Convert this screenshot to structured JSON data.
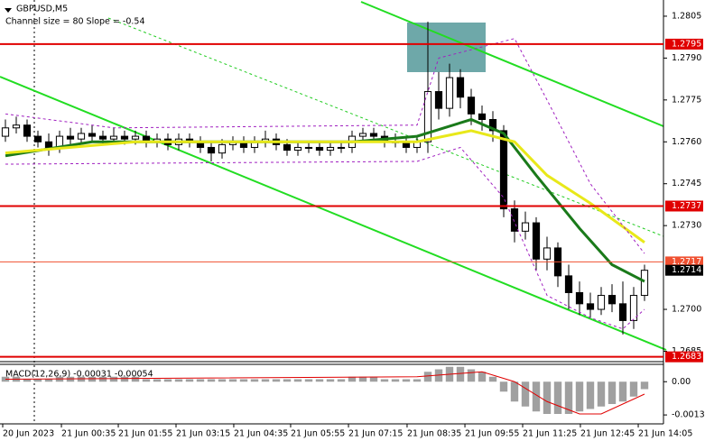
{
  "chart_data": {
    "type": "candlestick",
    "title": "GBPUSD,M5",
    "subtitle": "Channel size = 80 Slope = -0.54",
    "open": [
      1.2762,
      1.2765,
      1.2766,
      1.2762,
      1.276,
      1.2758,
      1.2762,
      1.2761,
      1.2763,
      1.2762,
      1.2761,
      1.2762,
      1.2761,
      1.2762,
      1.276,
      1.2761,
      1.2759,
      1.2761,
      1.276,
      1.2758,
      1.2756,
      1.2759,
      1.276,
      1.2758,
      1.276,
      1.2761,
      1.2759,
      1.2757,
      1.2758,
      1.2758,
      1.2757,
      1.2758,
      1.2758,
      1.2762,
      1.2763,
      1.2762,
      1.276,
      1.276,
      1.2758,
      1.276,
      1.2778,
      1.2772,
      1.2783,
      1.2776,
      1.277,
      1.2768,
      1.2764,
      1.2736,
      1.2728,
      1.2731,
      1.2718,
      1.2722,
      1.2712,
      1.2706,
      1.2702,
      1.27,
      1.2705,
      1.2702,
      1.2696,
      1.2705
    ],
    "high": [
      1.2768,
      1.2769,
      1.2768,
      1.2764,
      1.2763,
      1.2764,
      1.2765,
      1.2765,
      1.2766,
      1.2764,
      1.2765,
      1.2764,
      1.2764,
      1.2764,
      1.2763,
      1.2763,
      1.2763,
      1.2763,
      1.2762,
      1.276,
      1.2761,
      1.2762,
      1.2762,
      1.2762,
      1.2764,
      1.2763,
      1.2761,
      1.276,
      1.276,
      1.276,
      1.276,
      1.276,
      1.2764,
      1.2765,
      1.2765,
      1.2764,
      1.2763,
      1.2762,
      1.2762,
      1.2803,
      1.2785,
      1.2788,
      1.2786,
      1.2779,
      1.2773,
      1.2771,
      1.2766,
      1.2739,
      1.2735,
      1.2733,
      1.2726,
      1.2724,
      1.2716,
      1.271,
      1.2706,
      1.2708,
      1.2709,
      1.271,
      1.2708,
      1.2716
    ],
    "low": [
      1.276,
      1.2763,
      1.276,
      1.2758,
      1.2755,
      1.2756,
      1.2759,
      1.2759,
      1.276,
      1.2759,
      1.2759,
      1.2759,
      1.2759,
      1.2758,
      1.2758,
      1.2757,
      1.2757,
      1.2758,
      1.2756,
      1.2753,
      1.2754,
      1.2757,
      1.2756,
      1.2756,
      1.2758,
      1.2757,
      1.2755,
      1.2755,
      1.2756,
      1.2755,
      1.2755,
      1.2756,
      1.2756,
      1.276,
      1.276,
      1.2758,
      1.2758,
      1.2756,
      1.2756,
      1.2756,
      1.2768,
      1.2769,
      1.2772,
      1.2766,
      1.2764,
      1.276,
      1.2733,
      1.2724,
      1.2725,
      1.2714,
      1.2714,
      1.2708,
      1.27,
      1.2698,
      1.2697,
      1.2698,
      1.2699,
      1.2691,
      1.2693,
      1.2703
    ],
    "close": [
      1.2765,
      1.2766,
      1.2762,
      1.276,
      1.2758,
      1.2762,
      1.2761,
      1.2763,
      1.2762,
      1.2761,
      1.2762,
      1.2761,
      1.2762,
      1.276,
      1.2761,
      1.2759,
      1.2761,
      1.276,
      1.2758,
      1.2756,
      1.2759,
      1.276,
      1.2758,
      1.276,
      1.2761,
      1.2759,
      1.2757,
      1.2758,
      1.2758,
      1.2757,
      1.2758,
      1.2758,
      1.2762,
      1.2763,
      1.2762,
      1.276,
      1.276,
      1.2758,
      1.276,
      1.2778,
      1.2772,
      1.2783,
      1.2776,
      1.277,
      1.2768,
      1.2764,
      1.2736,
      1.2728,
      1.2731,
      1.2718,
      1.2722,
      1.2712,
      1.2706,
      1.2702,
      1.27,
      1.2705,
      1.2702,
      1.2696,
      1.2705,
      1.2714
    ],
    "color": "#000000",
    "lines": [
      {
        "color": "#1a7a1a",
        "x": [
          0,
          8,
          20,
          32,
          38,
          43,
          46,
          49,
          53,
          56,
          59
        ],
        "values": [
          1.2755,
          1.276,
          1.276,
          1.276,
          1.2762,
          1.2768,
          1.2763,
          1.2748,
          1.2729,
          1.2716,
          1.271
        ]
      },
      {
        "color": "#e8e81a",
        "x": [
          0,
          12,
          38,
          43,
          47,
          50,
          54,
          59
        ],
        "values": [
          1.2756,
          1.276,
          1.276,
          1.2764,
          1.276,
          1.2748,
          1.2738,
          1.2724
        ]
      },
      {
        "color": "#a020c0",
        "x": [
          0,
          10,
          38,
          40,
          47,
          50,
          54,
          59
        ],
        "values": [
          1.277,
          1.2765,
          1.2766,
          1.279,
          1.2797,
          1.2775,
          1.2745,
          1.272
        ]
      },
      {
        "color": "#a020c0",
        "x": [
          0,
          38,
          42,
          46,
          50,
          54,
          57,
          59
        ],
        "values": [
          1.2752,
          1.2753,
          1.2758,
          1.274,
          1.2705,
          1.2697,
          1.2693,
          1.27
        ]
      }
    ],
    "levels": [
      {
        "value": 1.2795,
        "color": "#e00000"
      },
      {
        "value": 1.2737,
        "color": "#e00000"
      },
      {
        "value": 1.2717,
        "color": "#f05030"
      },
      {
        "value": 1.2683,
        "color": "#e00000"
      }
    ],
    "last_price": 1.2714,
    "ylim": [
      1.26816,
      1.28108
    ],
    "yticks": [
      1.2805,
      {
        "value": 1.279,
        "label": "1.2790"
      },
      1.2775,
      {
        "value": 1.276,
        "label": "1.2760"
      },
      1.2745,
      {
        "value": 1.273,
        "label": "1.2730"
      },
      {
        "value": 1.27,
        "label": "1.2700"
      },
      1.2685
    ],
    "xlim": [
      -0.5,
      60.75
    ],
    "xticks": [
      {
        "value": -0.25,
        "label": "20 Jun 2023"
      },
      {
        "value": 5.17,
        "label": "21 Jun 00:35"
      },
      {
        "value": 10.42,
        "label": "21 Jun 01:55"
      },
      {
        "value": 15.75,
        "label": "21 Jun 03:15"
      },
      {
        "value": 21.08,
        "label": "21 Jun 04:35"
      },
      {
        "value": 26.33,
        "label": "21 Jun 05:55"
      },
      {
        "value": 31.67,
        "label": "21 Jun 07:15"
      },
      {
        "value": 37.08,
        "label": "21 Jun 08:35"
      },
      {
        "value": 42.42,
        "label": "21 Jun 09:55"
      },
      {
        "value": 47.75,
        "label": "21 Jun 11:25"
      },
      {
        "value": 53.08,
        "label": "21 Jun 12:45"
      },
      {
        "value": 58.42,
        "label": "21 Jun 14:05"
      }
    ],
    "macd": {
      "title": "MACD(12,26,9) -0.00031 -0.00054",
      "histogram_color": "#a0a0a0",
      "histogram": [
        0.0002,
        0.0002,
        0.0001,
        0.0001,
        0.0001,
        0.0002,
        0.0002,
        0.0002,
        0.0002,
        0.0002,
        0.0002,
        0.0002,
        0.0002,
        0.0001,
        0.0001,
        0.0001,
        0.0001,
        0.0001,
        0.0001,
        0.0001,
        0.0001,
        0.0001,
        0.0001,
        0.0001,
        0.0001,
        0.0001,
        0.0001,
        0.0001,
        0.0001,
        0.0001,
        0.0001,
        0.0001,
        0.0002,
        0.0002,
        0.0002,
        0.0001,
        0.0001,
        0.0001,
        0.0001,
        0.0004,
        0.0005,
        0.0006,
        0.0006,
        0.0005,
        0.0004,
        0.0002,
        -0.0004,
        -0.0008,
        -0.001,
        -0.0012,
        -0.0013,
        -0.0013,
        -0.0013,
        -0.0012,
        -0.0011,
        -0.001,
        -0.0009,
        -0.0008,
        -0.0006,
        -0.0003
      ],
      "signal": {
        "color": "#e00000",
        "x": [
          0,
          38,
          44,
          47,
          50,
          53,
          55,
          59
        ],
        "values": [
          0.0001,
          0.0002,
          0.0004,
          0,
          -0.0008,
          -0.0013,
          -0.0013,
          -0.0005
        ]
      },
      "ylim": [
        -0.0017,
        0.0007
      ],
      "yticks": [
        {
          "value": 0,
          "label": "0.00"
        },
        -0.00134
      ]
    }
  }
}
